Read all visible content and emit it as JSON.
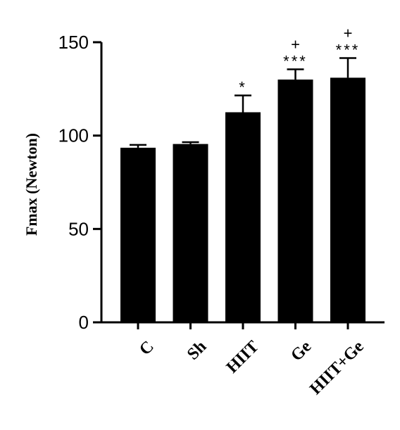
{
  "chart_data": {
    "type": "bar",
    "title": "",
    "xlabel": "",
    "ylabel": "Fmax (Newton)",
    "ylim": [
      0,
      150
    ],
    "yticks": [
      0,
      50,
      100,
      150
    ],
    "categories": [
      "C",
      "Sh",
      "HIIT",
      "Ge",
      "HIIT+Ge"
    ],
    "values": [
      93.5,
      95.5,
      112.5,
      130,
      131
    ],
    "errors": [
      1.5,
      1,
      9,
      5.5,
      10.5
    ],
    "annotations": [
      {
        "category": "HIIT",
        "significance": "*",
        "plus": ""
      },
      {
        "category": "Ge",
        "significance": "***",
        "plus": "+"
      },
      {
        "category": "HIIT+Ge",
        "significance": "***",
        "plus": "+"
      }
    ],
    "bar_color": "#000000",
    "grid": false,
    "legend": "none"
  }
}
